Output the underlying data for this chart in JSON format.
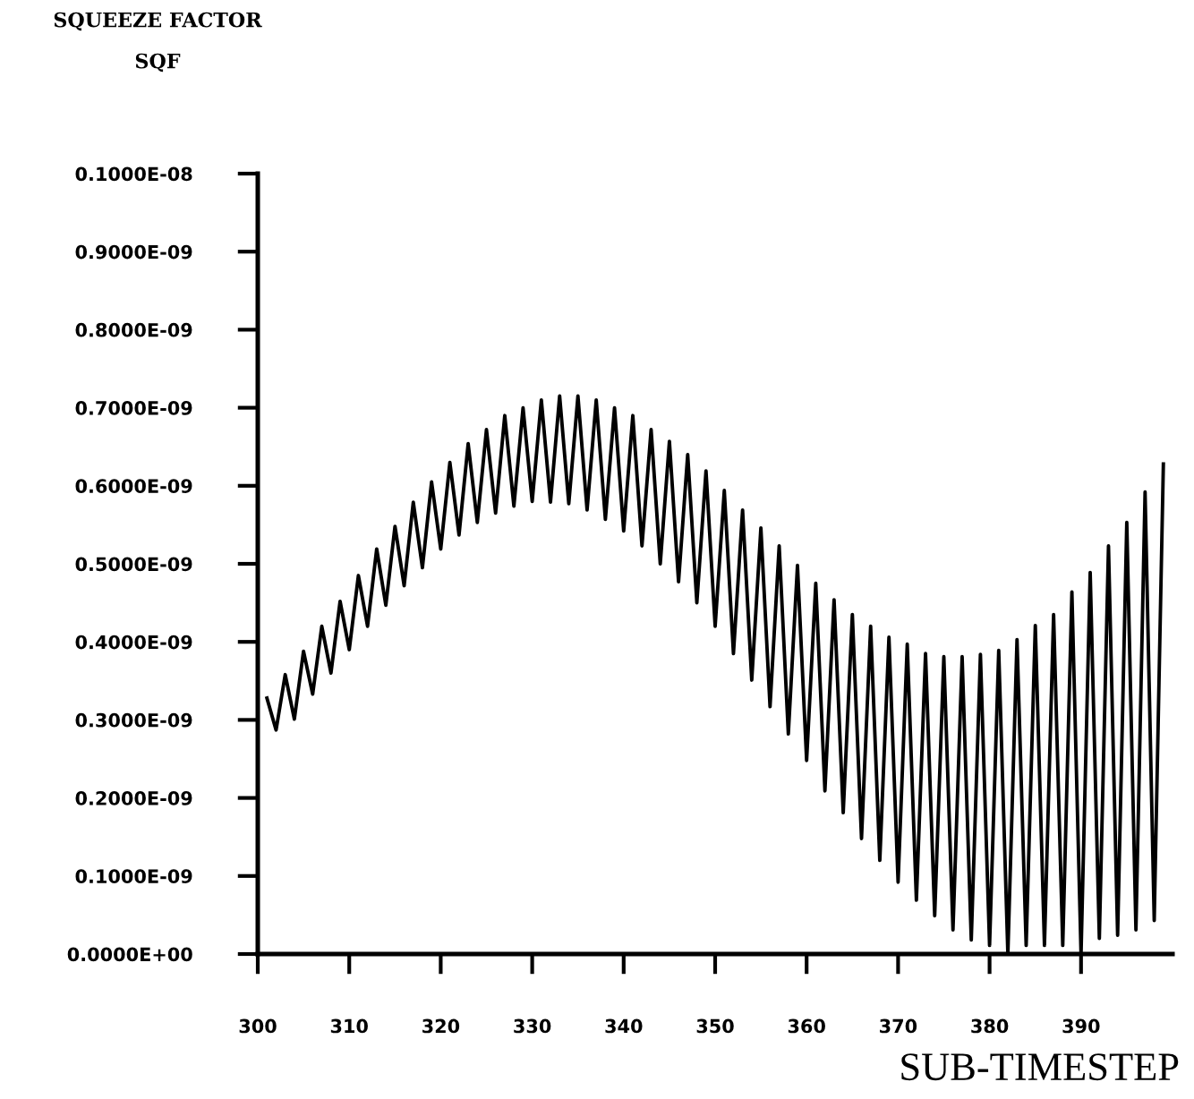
{
  "chart_data": {
    "type": "line",
    "title": "SQUEEZE FACTOR",
    "ylabel": "SQF",
    "xlabel": "SUB-TIMESTEP",
    "x": [
      301,
      302,
      303,
      304,
      305,
      306,
      307,
      308,
      309,
      310,
      311,
      312,
      313,
      314,
      315,
      316,
      317,
      318,
      319,
      320,
      321,
      322,
      323,
      324,
      325,
      326,
      327,
      328,
      329,
      330,
      331,
      332,
      333,
      334,
      335,
      336,
      337,
      338,
      339,
      340,
      341,
      342,
      343,
      344,
      345,
      346,
      347,
      348,
      349,
      350,
      351,
      352,
      353,
      354,
      355,
      356,
      357,
      358,
      359,
      360,
      361,
      362,
      363,
      364,
      365,
      366,
      367,
      368,
      369,
      370,
      371,
      372,
      373,
      374,
      375,
      376,
      377,
      378,
      379,
      380,
      381,
      382,
      383,
      384,
      385,
      386,
      387,
      388,
      389,
      390,
      391,
      392,
      393,
      394,
      395,
      396,
      397,
      398,
      399
    ],
    "series": [
      {
        "color": "#000000",
        "values": [
          3.28e-10,
          2.87e-10,
          3.58e-10,
          3.01e-10,
          3.88e-10,
          3.33e-10,
          4.2e-10,
          3.6e-10,
          4.52e-10,
          3.9e-10,
          4.85e-10,
          4.2e-10,
          5.19e-10,
          4.47e-10,
          5.48e-10,
          4.72e-10,
          5.79e-10,
          4.95e-10,
          6.05e-10,
          5.19e-10,
          6.3e-10,
          5.37e-10,
          6.54e-10,
          5.53e-10,
          6.72e-10,
          5.65e-10,
          6.9e-10,
          5.74e-10,
          7e-10,
          5.8e-10,
          7.1e-10,
          5.79e-10,
          7.15e-10,
          5.77e-10,
          7.15e-10,
          5.69e-10,
          7.1e-10,
          5.57e-10,
          7e-10,
          5.42e-10,
          6.9e-10,
          5.23e-10,
          6.72e-10,
          5e-10,
          6.57e-10,
          4.77e-10,
          6.4e-10,
          4.5e-10,
          6.19e-10,
          4.2e-10,
          5.94e-10,
          3.85e-10,
          5.69e-10,
          3.51e-10,
          5.46e-10,
          3.17e-10,
          5.23e-10,
          2.82e-10,
          4.98e-10,
          2.48e-10,
          4.75e-10,
          2.09e-10,
          4.54e-10,
          1.81e-10,
          4.35e-10,
          1.48e-10,
          4.2e-10,
          1.2e-10,
          4.06e-10,
          9.2e-11,
          3.97e-10,
          6.9e-11,
          3.85e-10,
          4.9e-11,
          3.81e-10,
          3.1e-11,
          3.81e-10,
          1.8e-11,
          3.84e-10,
          1.1e-11,
          3.89e-10,
          0.0,
          4.03e-10,
          1.1e-11,
          4.21e-10,
          1.1e-11,
          4.35e-10,
          1.1e-11,
          4.64e-10,
          0.0,
          4.89e-10,
          2e-11,
          5.23e-10,
          2.4e-11,
          5.53e-10,
          3.1e-11,
          5.92e-10,
          4.3e-11,
          6.28e-10
        ]
      }
    ],
    "xlim": [
      300,
      400
    ],
    "xticks": [
      300,
      310,
      320,
      330,
      340,
      350,
      360,
      370,
      380,
      390
    ],
    "ylim": [
      0,
      1e-09
    ],
    "yticks": [
      {
        "value": 0,
        "label": "0.0000E+00"
      },
      {
        "value": 1e-10,
        "label": "0.1000E-09"
      },
      {
        "value": 2e-10,
        "label": "0.2000E-09"
      },
      {
        "value": 3e-10,
        "label": "0.3000E-09"
      },
      {
        "value": 4e-10,
        "label": "0.4000E-09"
      },
      {
        "value": 5e-10,
        "label": "0.5000E-09"
      },
      {
        "value": 6e-10,
        "label": "0.6000E-09"
      },
      {
        "value": 7e-10,
        "label": "0.7000E-09"
      },
      {
        "value": 8e-10,
        "label": "0.8000E-09"
      },
      {
        "value": 9e-10,
        "label": "0.9000E-09"
      },
      {
        "value": 1e-09,
        "label": "0.1000E-08"
      }
    ],
    "grid": false,
    "legend": false,
    "marker": "none",
    "line_style": "solid"
  }
}
